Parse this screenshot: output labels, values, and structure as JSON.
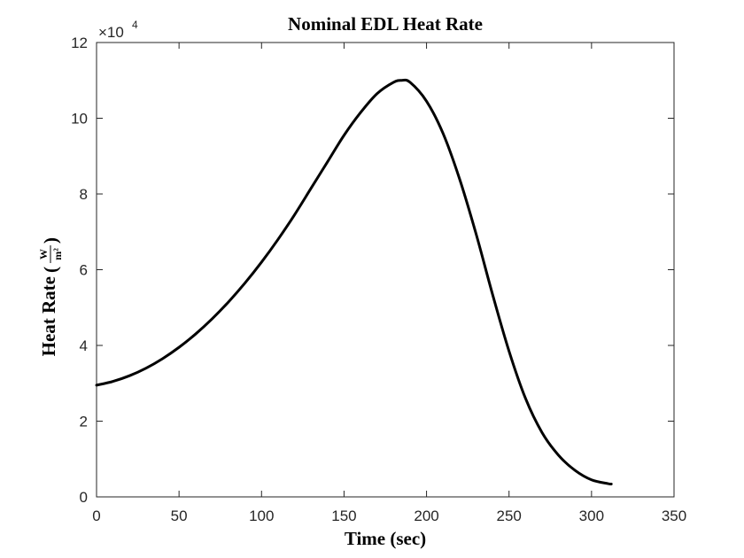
{
  "chart_data": {
    "type": "line",
    "title": "Nominal EDL Heat Rate",
    "xlabel": "Time (sec)",
    "ylabel": "Heat Rate",
    "ylabel_unit_numerator": "W",
    "ylabel_unit_denominator": "m²",
    "xlim": [
      0,
      350
    ],
    "ylim": [
      0,
      120000
    ],
    "xticks": [
      "0",
      "50",
      "100",
      "150",
      "200",
      "250",
      "300",
      "350"
    ],
    "yticks": [
      "0",
      "2",
      "4",
      "6",
      "8",
      "10",
      "12"
    ],
    "y_exponent_base": "×10",
    "y_exponent_power": "4",
    "grid": false,
    "line_color": "#000000",
    "series": [
      {
        "x": [
          0,
          10,
          20,
          30,
          40,
          50,
          60,
          70,
          80,
          90,
          100,
          110,
          120,
          130,
          140,
          150,
          160,
          170,
          180,
          185,
          190,
          200,
          210,
          220,
          230,
          240,
          250,
          260,
          270,
          280,
          290,
          300,
          310,
          312
        ],
        "values": [
          29500,
          30500,
          32000,
          34000,
          36500,
          39500,
          43000,
          47000,
          51500,
          56500,
          62000,
          68000,
          74500,
          81500,
          88500,
          95500,
          101500,
          106500,
          109500,
          110000,
          109500,
          104500,
          96000,
          84000,
          69500,
          53500,
          38500,
          26000,
          17000,
          11000,
          7000,
          4500,
          3500,
          3400
        ]
      }
    ]
  }
}
